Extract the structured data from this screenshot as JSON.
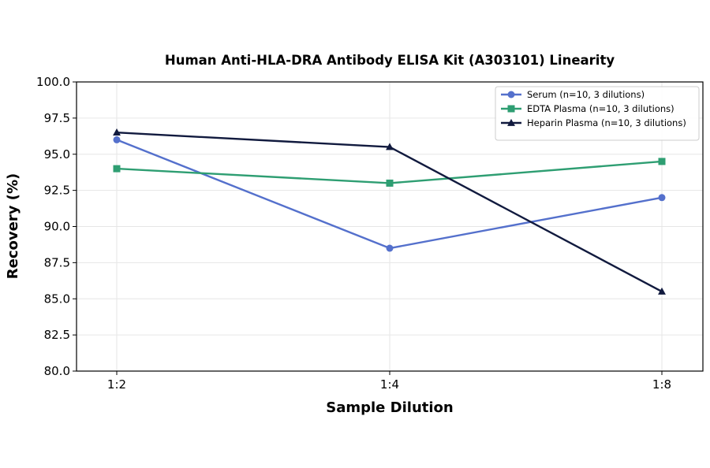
{
  "chart_data": {
    "type": "line",
    "title": "Human Anti-HLA-DRA Antibody ELISA Kit (A303101) Linearity",
    "xlabel": "Sample Dilution",
    "ylabel": "Recovery (%)",
    "categories": [
      "1:2",
      "1:4",
      "1:8"
    ],
    "ylim": [
      80.0,
      100.0
    ],
    "yticks": [
      "80.0",
      "82.5",
      "85.0",
      "87.5",
      "90.0",
      "92.5",
      "95.0",
      "97.5",
      "100.0"
    ],
    "grid": true,
    "legend_position": "top-right",
    "series": [
      {
        "name": "Serum (n=10, 3 dilutions)",
        "values": [
          96.0,
          88.5,
          92.0
        ],
        "color": "#5470cc",
        "marker": "circle"
      },
      {
        "name": "EDTA Plasma (n=10, 3 dilutions)",
        "values": [
          94.0,
          93.0,
          94.5
        ],
        "color": "#2e9e72",
        "marker": "square"
      },
      {
        "name": "Heparin Plasma (n=10, 3 dilutions)",
        "values": [
          96.5,
          95.5,
          85.5
        ],
        "color": "#111a3e",
        "marker": "triangle"
      }
    ]
  }
}
